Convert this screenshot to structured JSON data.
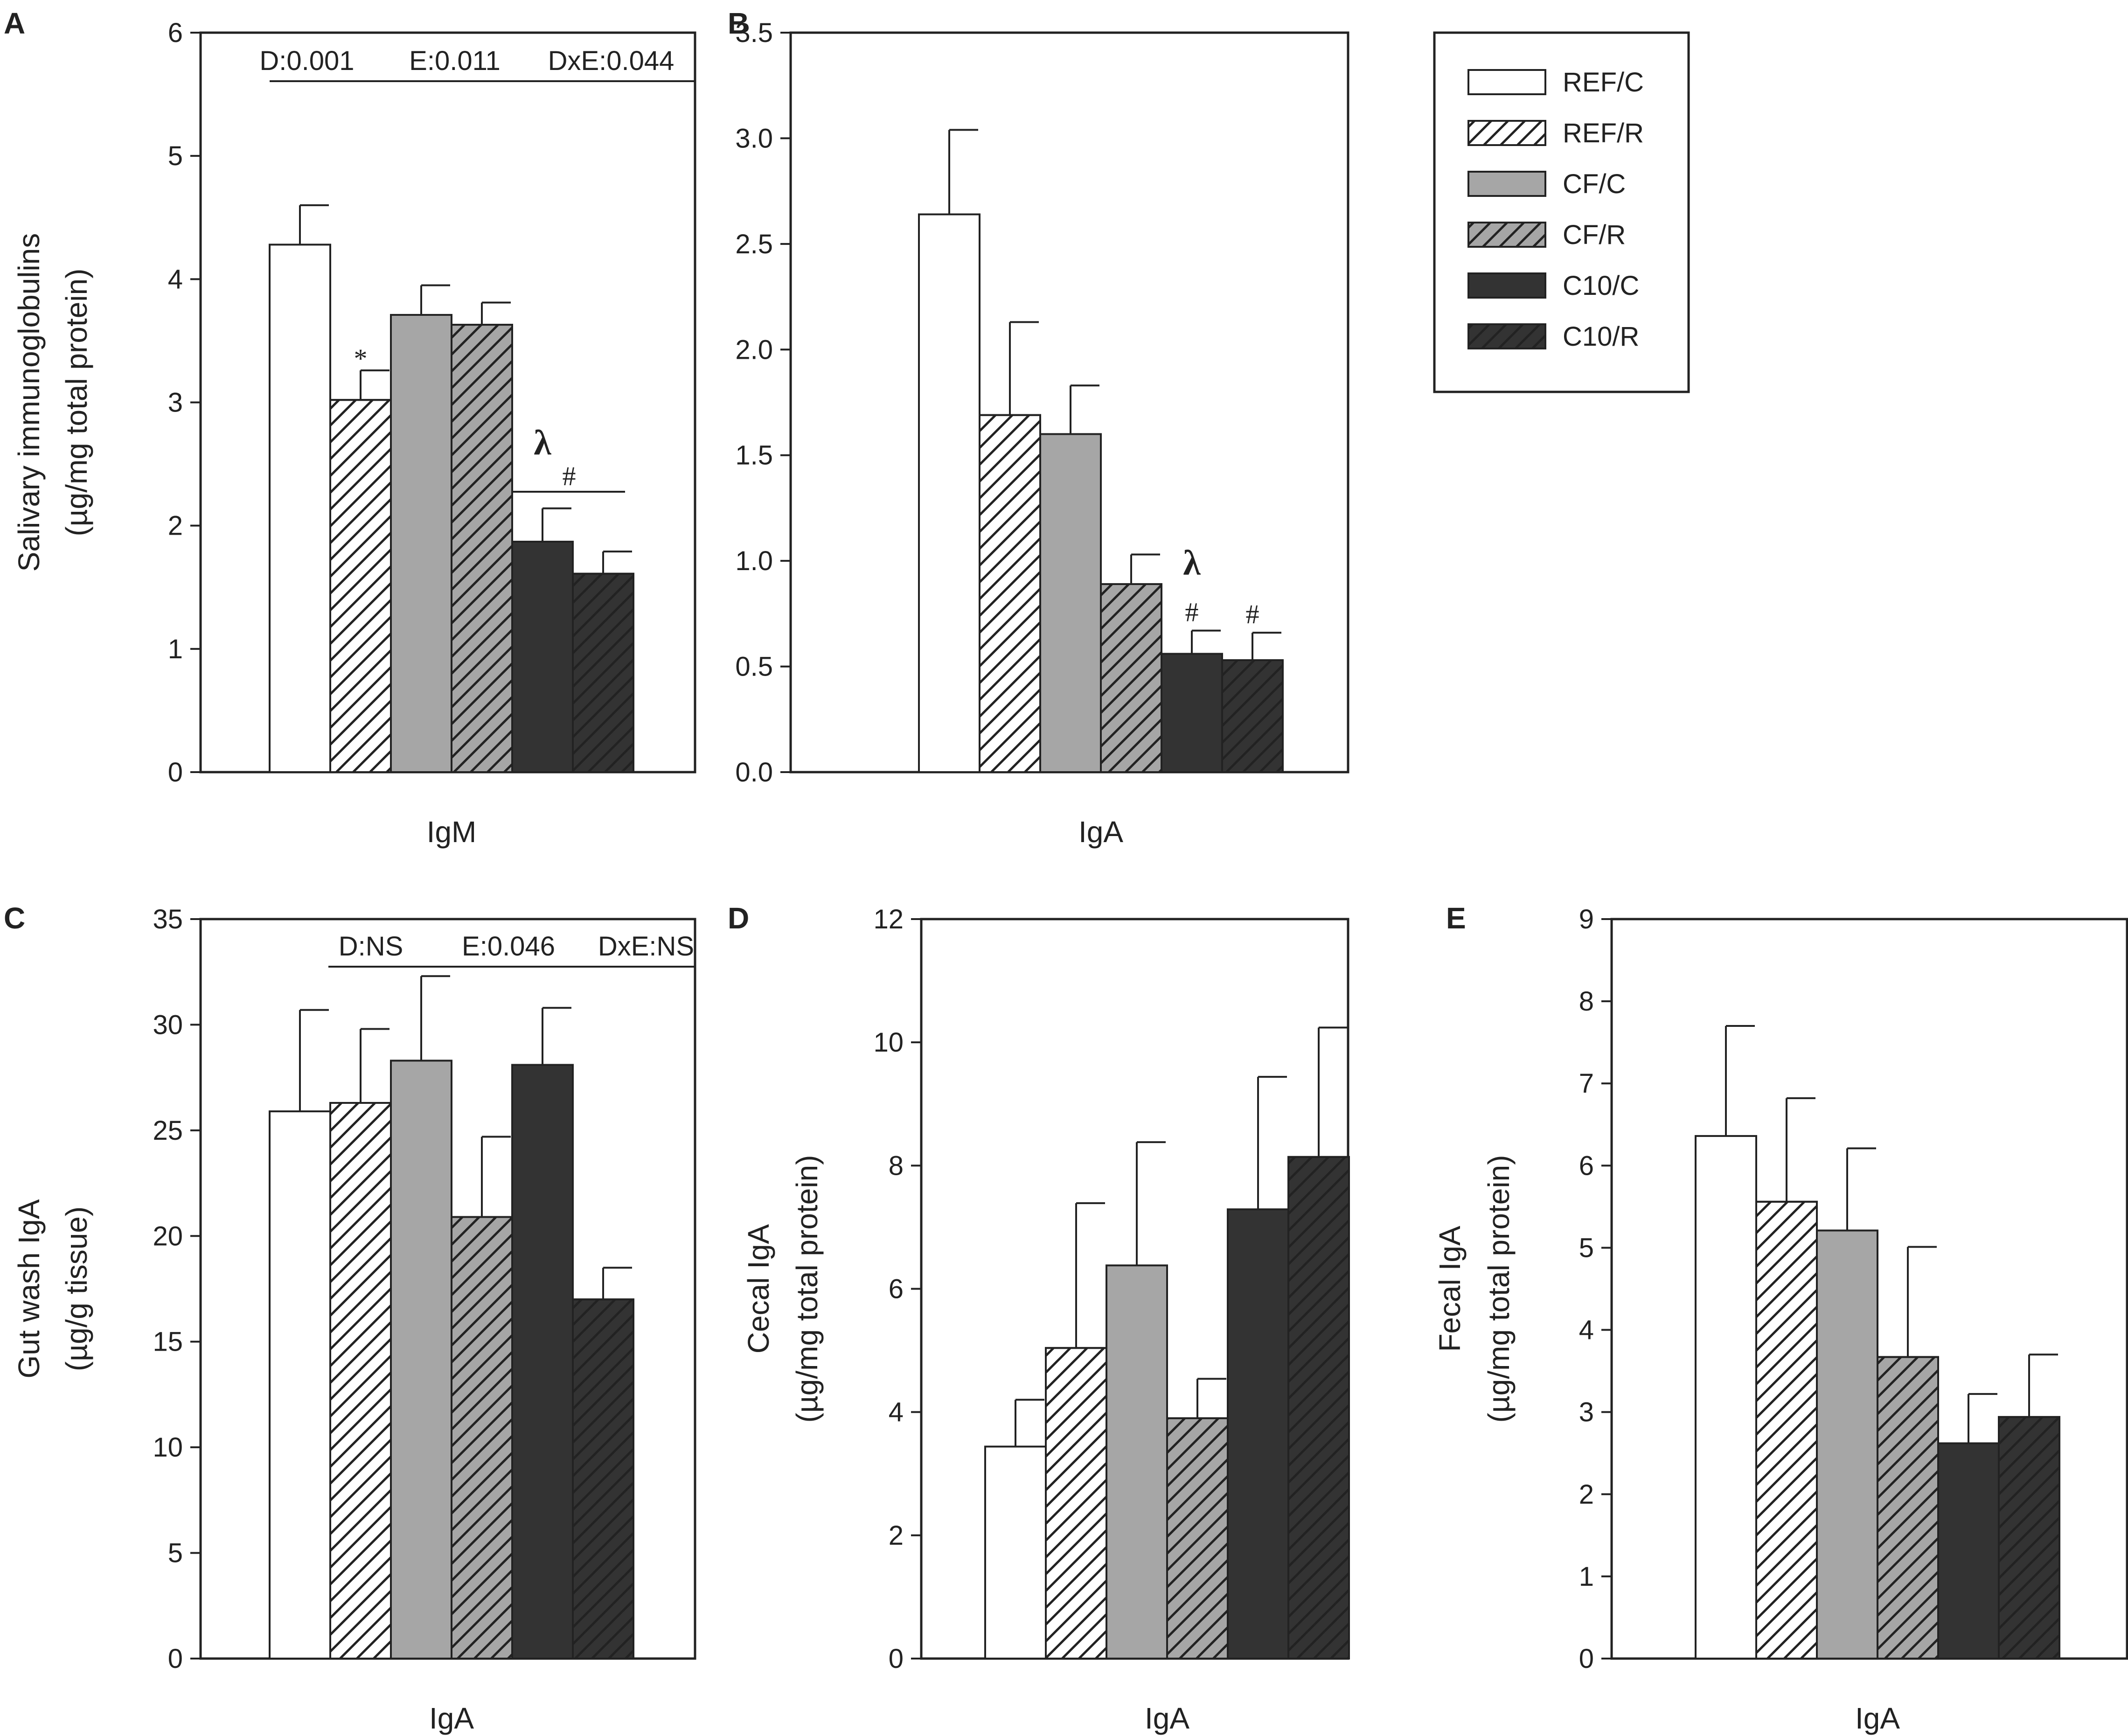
{
  "legend": {
    "entries": [
      {
        "label": "REF/C",
        "fill": "#ffffff",
        "hatch": false
      },
      {
        "label": "REF/R",
        "fill": "#ffffff",
        "hatch": true
      },
      {
        "label": "CF/C",
        "fill": "#a6a6a6",
        "hatch": false
      },
      {
        "label": "CF/R",
        "fill": "#a6a6a6",
        "hatch": true
      },
      {
        "label": "C10/C",
        "fill": "#333333",
        "hatch": false
      },
      {
        "label": "C10/R",
        "fill": "#333333",
        "hatch": true
      }
    ]
  },
  "chart_data": [
    {
      "panel": "A",
      "type": "bar",
      "category": "IgM",
      "ylabel": [
        "Salivary immunoglobulins",
        "(µg/mg total protein)"
      ],
      "ylim": [
        0,
        6
      ],
      "yticks": [
        "0",
        "1",
        "2",
        "3",
        "4",
        "5",
        "6"
      ],
      "series": [
        "REF/C",
        "REF/R",
        "CF/C",
        "CF/R",
        "C10/C",
        "C10/R"
      ],
      "values": [
        4.28,
        3.02,
        3.71,
        3.63,
        1.87,
        1.61
      ],
      "errors": [
        0.32,
        0.24,
        0.24,
        0.18,
        0.27,
        0.18
      ],
      "stats": [
        "D:0.001",
        "E:0.011",
        "DxE:0.044"
      ],
      "marks": [
        {
          "bar": 1,
          "text": "*"
        },
        {
          "bar": 4,
          "text": "λ"
        },
        {
          "bracket": [
            4,
            5
          ],
          "text": "#"
        }
      ]
    },
    {
      "panel": "B",
      "type": "bar",
      "category": "IgA",
      "ylabel": [],
      "ylim": [
        0,
        3.5
      ],
      "yticks": [
        "0.0",
        "0.5",
        "1.0",
        "1.5",
        "2.0",
        "2.5",
        "3.0",
        "3.5"
      ],
      "series": [
        "REF/C",
        "REF/R",
        "CF/C",
        "CF/R",
        "C10/C",
        "C10/R"
      ],
      "values": [
        2.64,
        1.69,
        1.6,
        0.89,
        0.56,
        0.53
      ],
      "errors": [
        0.4,
        0.44,
        0.23,
        0.14,
        0.11,
        0.13
      ],
      "stats": [],
      "marks": [
        {
          "bar": 4,
          "text": "λ"
        },
        {
          "bar": 4,
          "text": "#"
        },
        {
          "bar": 5,
          "text": "#"
        }
      ]
    },
    {
      "panel": "C",
      "type": "bar",
      "category": "IgA",
      "ylabel": [
        "Gut wash IgA",
        "(µg/g tissue)"
      ],
      "ylim": [
        0,
        35
      ],
      "yticks": [
        "0",
        "5",
        "10",
        "15",
        "20",
        "25",
        "30",
        "35"
      ],
      "series": [
        "REF/C",
        "REF/R",
        "CF/C",
        "CF/R",
        "C10/C",
        "C10/R"
      ],
      "values": [
        25.9,
        26.3,
        28.3,
        20.9,
        28.1,
        17.0
      ],
      "errors": [
        4.8,
        3.5,
        4.0,
        3.8,
        2.7,
        1.5
      ],
      "stats": [
        "D:NS",
        "E:0.046",
        "DxE:NS"
      ],
      "marks": []
    },
    {
      "panel": "D",
      "type": "bar",
      "category": "IgA",
      "ylabel": [
        "Cecal IgA",
        "(µg/mg total protein)"
      ],
      "ylim": [
        0,
        12
      ],
      "yticks": [
        "0",
        "2",
        "4",
        "6",
        "8",
        "10",
        "12"
      ],
      "series": [
        "REF/C",
        "REF/R",
        "CF/C",
        "CF/R",
        "C10/C",
        "C10/R"
      ],
      "values": [
        3.44,
        5.04,
        6.38,
        3.9,
        7.29,
        8.14
      ],
      "errors": [
        0.76,
        2.35,
        2.0,
        0.64,
        2.15,
        2.1
      ],
      "stats": [],
      "marks": []
    },
    {
      "panel": "E",
      "type": "bar",
      "category": "IgA",
      "ylabel": [
        "Fecal IgA",
        "(µg/mg total protein)"
      ],
      "ylim": [
        0,
        9
      ],
      "yticks": [
        "0",
        "1",
        "2",
        "3",
        "4",
        "5",
        "6",
        "7",
        "8",
        "9"
      ],
      "series": [
        "REF/C",
        "REF/R",
        "CF/C",
        "CF/R",
        "C10/C",
        "C10/R"
      ],
      "values": [
        6.36,
        5.56,
        5.21,
        3.67,
        2.62,
        2.94
      ],
      "errors": [
        1.34,
        1.26,
        1.0,
        1.34,
        0.6,
        0.76
      ],
      "stats": [],
      "marks": []
    }
  ]
}
